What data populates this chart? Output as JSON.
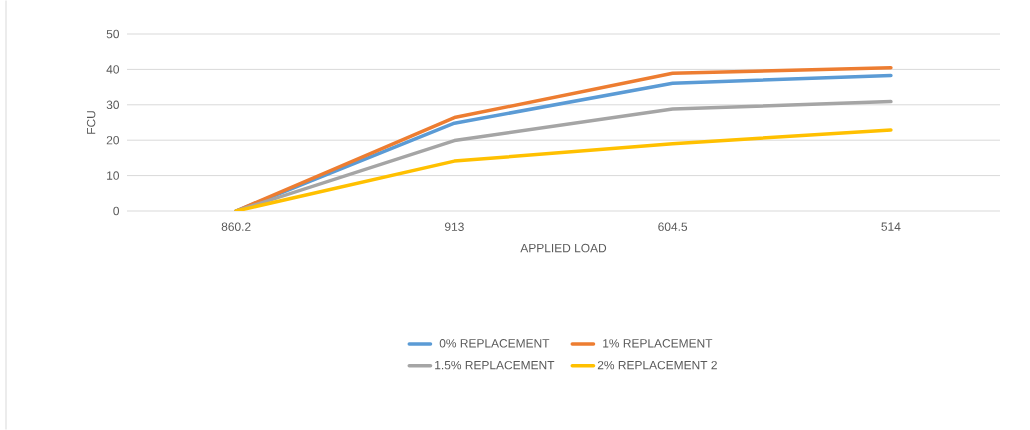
{
  "chart_data": {
    "type": "line",
    "xlabel": "APPLIED LOAD",
    "ylabel": "FCU",
    "categories": [
      "860.2",
      "913",
      "604.5",
      "514"
    ],
    "series": [
      {
        "name": "0% REPLACEMENT",
        "color": "#5b9bd5",
        "values": [
          0,
          24.8,
          36.1,
          38.3
        ]
      },
      {
        "name": "1% REPLACEMENT",
        "color": "#ed7d31",
        "values": [
          0,
          26.4,
          38.9,
          40.5
        ]
      },
      {
        "name": "1.5% REPLACEMENT",
        "color": "#a5a5a5",
        "values": [
          0,
          19.9,
          28.8,
          30.9
        ]
      },
      {
        "name": "2% REPLACEMENT 2",
        "color": "#ffc000",
        "values": [
          0,
          14.1,
          19.0,
          22.9
        ]
      }
    ],
    "ylim": [
      0,
      50
    ],
    "yticks": [
      0,
      10,
      20,
      30,
      40,
      50
    ],
    "grid": "y",
    "legend": "bottom",
    "marker": "none",
    "line_style": "solid"
  }
}
